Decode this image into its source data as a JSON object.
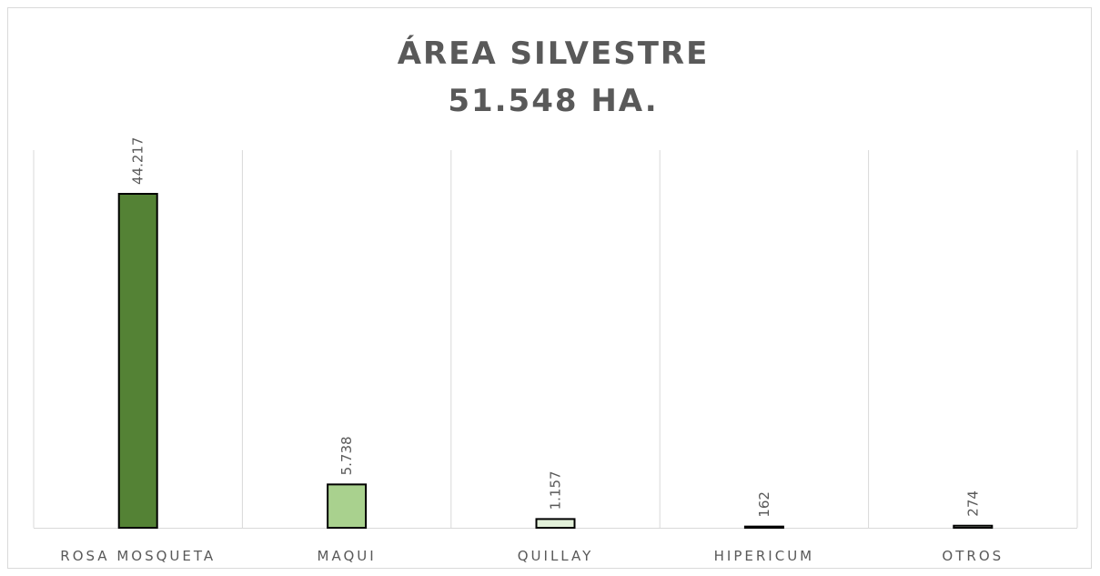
{
  "chart_data": {
    "type": "bar",
    "title": "ÁREA SILVESTRE",
    "subtitle": "51.548 HA.",
    "categories": [
      "ROSA MOSQUETA",
      "MAQUI",
      "QUILLAY",
      "HIPERICUM",
      "OTROS"
    ],
    "values": [
      44217,
      5738,
      1157,
      162,
      274
    ],
    "value_labels": [
      "44.217",
      "5.738",
      "1.157",
      "162",
      "274"
    ],
    "colors": [
      "#548235",
      "#a9d18e",
      "#e2f0d9",
      "#e2f0d9",
      "#e2f0d9"
    ],
    "ylim": [
      0,
      50000
    ]
  }
}
